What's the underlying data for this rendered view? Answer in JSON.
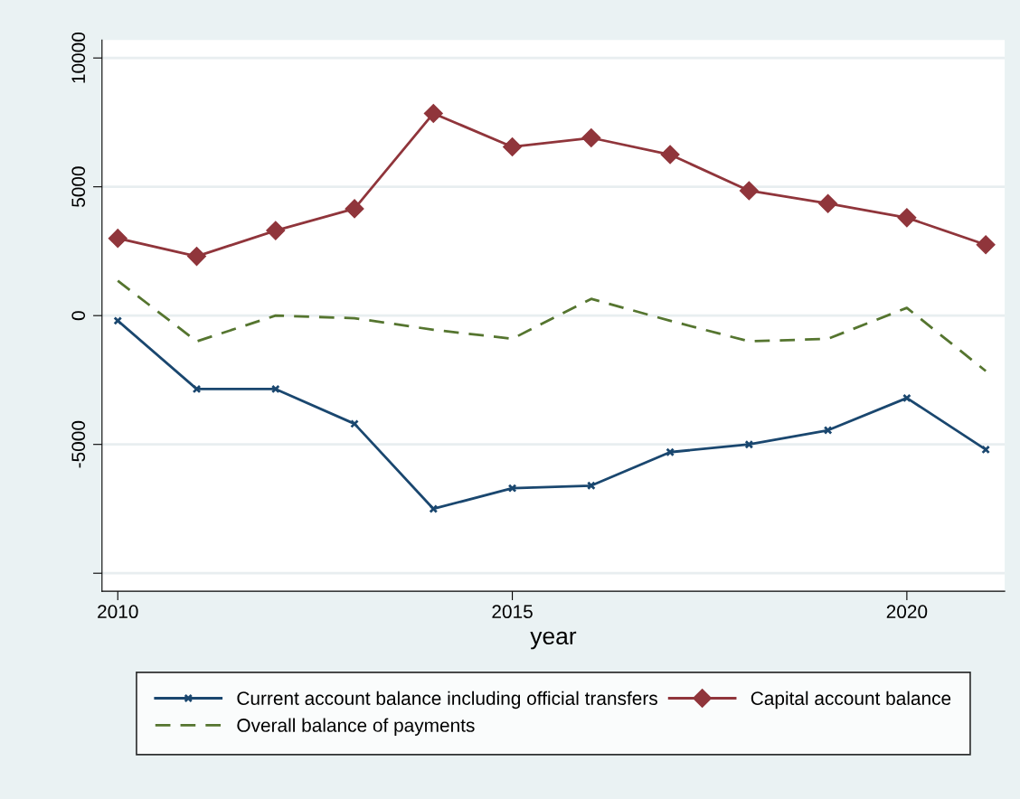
{
  "chart_data": {
    "type": "line",
    "xlabel": "year",
    "x": [
      2010,
      2011,
      2012,
      2013,
      2014,
      2015,
      2016,
      2017,
      2018,
      2019,
      2020,
      2021
    ],
    "series": [
      {
        "name": "Current account balance including official transfers",
        "color": "#1a476f",
        "marker": "cross",
        "line_style": "solid",
        "values": [
          -200,
          -2850,
          -2850,
          -4200,
          -7500,
          -6700,
          -6600,
          -5300,
          -5000,
          -4450,
          -3200,
          -5200
        ]
      },
      {
        "name": "Capital account balance",
        "color": "#90353b",
        "marker": "diamond",
        "line_style": "solid",
        "values": [
          3000,
          2300,
          3300,
          4150,
          7850,
          6550,
          6900,
          6250,
          4850,
          4350,
          3800,
          2750
        ]
      },
      {
        "name": "Overall balance of payments",
        "color": "#55752f",
        "marker": "none",
        "line_style": "dashed",
        "values": [
          1350,
          -1000,
          0,
          -100,
          -550,
          -900,
          650,
          -200,
          -1000,
          -900,
          300,
          -2150
        ]
      }
    ],
    "xlim": [
      2009.8,
      2021.24
    ],
    "xticks": [
      2010,
      2015,
      2020
    ],
    "ylim": [
      -10700,
      10700
    ],
    "yticks": [
      {
        "value": -10000,
        "label": null
      },
      -5000,
      0,
      5000,
      10000
    ],
    "grid": "y",
    "legend": "bottom"
  }
}
